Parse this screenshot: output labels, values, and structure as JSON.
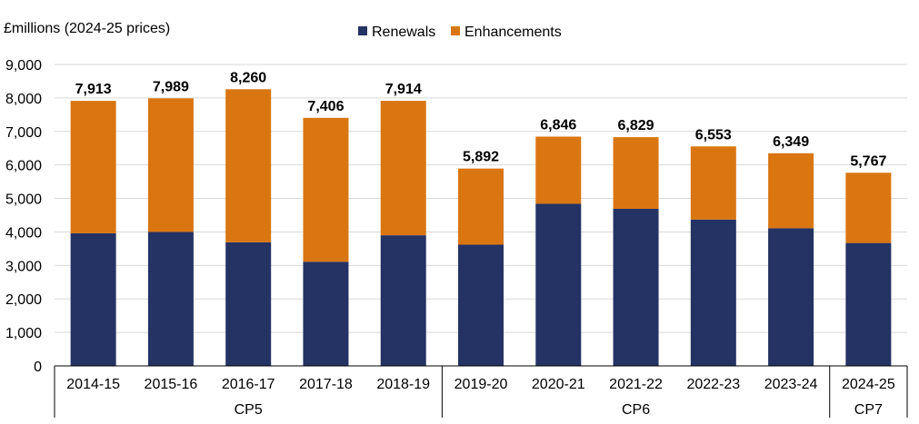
{
  "chart_data": {
    "type": "stacked-bar",
    "ylabel": "£millions (2024-25 prices)",
    "ylim": [
      0,
      9000
    ],
    "yticks": [
      0,
      1000,
      2000,
      3000,
      4000,
      5000,
      6000,
      7000,
      8000,
      9000
    ],
    "ytick_labels": [
      "0",
      "1,000",
      "2,000",
      "3,000",
      "4,000",
      "5,000",
      "6,000",
      "7,000",
      "8,000",
      "9,000"
    ],
    "grid": true,
    "legend_position": "top-center",
    "categories": [
      "2014-15",
      "2015-16",
      "2016-17",
      "2017-18",
      "2018-19",
      "2019-20",
      "2020-21",
      "2021-22",
      "2022-23",
      "2023-24",
      "2024-25"
    ],
    "groups": [
      {
        "label": "CP5",
        "start": 0,
        "end": 4
      },
      {
        "label": "CP6",
        "start": 5,
        "end": 9
      },
      {
        "label": "CP7",
        "start": 10,
        "end": 10
      }
    ],
    "series": [
      {
        "name": "Renewals",
        "color": "#253264",
        "values": [
          3960,
          4000,
          3690,
          3110,
          3900,
          3620,
          4840,
          4690,
          4370,
          4110,
          3670
        ]
      },
      {
        "name": "Enhancements",
        "color": "#D97612",
        "values": [
          3953,
          3989,
          4570,
          4296,
          4014,
          2272,
          2006,
          2139,
          2183,
          2239,
          2097
        ]
      }
    ],
    "totals": [
      7913,
      7989,
      8260,
      7406,
      7914,
      5892,
      6846,
      6829,
      6553,
      6349,
      5767
    ],
    "total_labels": [
      "7,913",
      "7,989",
      "8,260",
      "7,406",
      "7,914",
      "5,892",
      "6,846",
      "6,829",
      "6,553",
      "6,349",
      "5,767"
    ]
  }
}
